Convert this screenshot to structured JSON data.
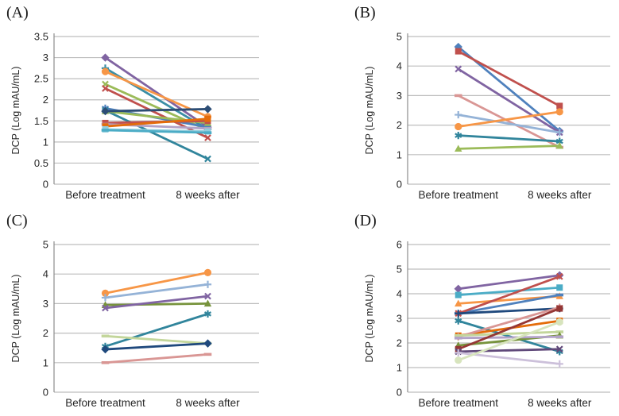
{
  "style": {
    "background": "#ffffff",
    "grid_color": "#bdbdbd",
    "axis_color": "#8c8c8c",
    "text_color": "#262626"
  },
  "chart_data": [
    {
      "type": "line",
      "panel_label": "(A)",
      "ylabel": "DCP (Log mAU/mL)",
      "categories": [
        "Before treatment",
        "8 weeks after"
      ],
      "ylim": [
        0,
        3.5
      ],
      "yticks": [
        0,
        0.5,
        1,
        1.5,
        2,
        2.5,
        3,
        3.5
      ],
      "ytick_labels": [
        "0",
        "0.5",
        "1",
        "1.5",
        "2",
        "2.5",
        "3",
        "3.5"
      ],
      "grid": true,
      "legend": "none",
      "series": [
        {
          "color": "#8064A2",
          "marker": "diamond",
          "values": [
            3.0,
            1.35
          ]
        },
        {
          "color": "#3B8EA5",
          "marker": "plus",
          "values": [
            2.75,
            1.3
          ]
        },
        {
          "color": "#F79646",
          "marker": "circle",
          "values": [
            2.67,
            1.6
          ]
        },
        {
          "color": "#9BBB59",
          "marker": "x",
          "values": [
            2.37,
            1.28
          ]
        },
        {
          "color": "#C0504D",
          "marker": "x",
          "values": [
            2.27,
            1.1
          ]
        },
        {
          "color": "#4F81BD",
          "marker": "asterisk",
          "values": [
            1.8,
            1.35
          ]
        },
        {
          "color": "#31859C",
          "marker": "x",
          "values": [
            1.75,
            0.6
          ]
        },
        {
          "color": "#9BBB59",
          "marker": "triangle",
          "values": [
            1.73,
            1.45
          ]
        },
        {
          "color": "#2C4D75",
          "marker": "diamond",
          "values": [
            1.73,
            1.78
          ]
        },
        {
          "color": "#C0504D",
          "marker": "square",
          "values": [
            1.45,
            1.5
          ]
        },
        {
          "color": "#B2A2C7",
          "marker": "dash",
          "values": [
            1.42,
            1.32
          ]
        },
        {
          "color": "#E46C0A",
          "marker": "square",
          "values": [
            1.37,
            1.55
          ]
        },
        {
          "color": "#92CDDC",
          "marker": "square",
          "values": [
            1.3,
            1.25
          ]
        },
        {
          "color": "#4BACC6",
          "marker": "dash",
          "values": [
            1.28,
            1.22
          ]
        }
      ]
    },
    {
      "type": "line",
      "panel_label": "(B)",
      "ylabel": "DCP (Log mAU/mL)",
      "categories": [
        "Before treatment",
        "8 weeks after"
      ],
      "ylim": [
        0,
        5
      ],
      "yticks": [
        0,
        1,
        2,
        3,
        4,
        5
      ],
      "ytick_labels": [
        "0",
        "1",
        "2",
        "3",
        "4",
        "5"
      ],
      "grid": true,
      "legend": "none",
      "series": [
        {
          "color": "#4F81BD",
          "marker": "diamond",
          "values": [
            4.65,
            1.8
          ]
        },
        {
          "color": "#C0504D",
          "marker": "square",
          "values": [
            4.5,
            2.65
          ]
        },
        {
          "color": "#8064A2",
          "marker": "x",
          "values": [
            3.9,
            1.75
          ]
        },
        {
          "color": "#D99694",
          "marker": "dash",
          "values": [
            3.0,
            1.25
          ]
        },
        {
          "color": "#95B3D7",
          "marker": "plus",
          "values": [
            2.35,
            1.75
          ]
        },
        {
          "color": "#F79646",
          "marker": "circle",
          "values": [
            1.95,
            2.45
          ]
        },
        {
          "color": "#31859C",
          "marker": "asterisk",
          "values": [
            1.65,
            1.45
          ]
        },
        {
          "color": "#9BBB59",
          "marker": "triangle",
          "values": [
            1.2,
            1.3
          ]
        }
      ]
    },
    {
      "type": "line",
      "panel_label": "(C)",
      "ylabel": "DCP (Log mAU/mL)",
      "categories": [
        "Before treatment",
        "8 weeks after"
      ],
      "ylim": [
        0,
        5
      ],
      "yticks": [
        0,
        1,
        2,
        3,
        4,
        5
      ],
      "ytick_labels": [
        "0",
        "1",
        "2",
        "3",
        "4",
        "5"
      ],
      "grid": true,
      "legend": "none",
      "series": [
        {
          "color": "#F79646",
          "marker": "circle",
          "values": [
            3.35,
            4.05
          ]
        },
        {
          "color": "#95B3D7",
          "marker": "plus",
          "values": [
            3.2,
            3.65
          ]
        },
        {
          "color": "#77933C",
          "marker": "triangle",
          "values": [
            2.95,
            3.0
          ]
        },
        {
          "color": "#8064A2",
          "marker": "x",
          "values": [
            2.85,
            3.25
          ]
        },
        {
          "color": "#31859C",
          "marker": "asterisk",
          "values": [
            1.55,
            2.65
          ]
        },
        {
          "color": "#C3D69B",
          "marker": "dash",
          "values": [
            1.9,
            1.65
          ]
        },
        {
          "color": "#1F497D",
          "marker": "diamond",
          "values": [
            1.45,
            1.65
          ]
        },
        {
          "color": "#D99694",
          "marker": "dash",
          "values": [
            1.0,
            1.28
          ]
        }
      ]
    },
    {
      "type": "line",
      "panel_label": "(D)",
      "ylabel": "DCP (Log mAU/mL)",
      "categories": [
        "Before treatment",
        "8 weeks after"
      ],
      "ylim": [
        0,
        6
      ],
      "yticks": [
        0,
        1,
        2,
        3,
        4,
        5,
        6
      ],
      "ytick_labels": [
        "0",
        "1",
        "2",
        "3",
        "4",
        "5",
        "6"
      ],
      "grid": true,
      "legend": "none",
      "series": [
        {
          "color": "#8064A2",
          "marker": "diamond",
          "values": [
            4.2,
            4.75
          ]
        },
        {
          "color": "#4BACC6",
          "marker": "square",
          "values": [
            3.95,
            4.25
          ]
        },
        {
          "color": "#F79646",
          "marker": "triangle",
          "values": [
            3.6,
            3.9
          ]
        },
        {
          "color": "#4F81BD",
          "marker": "dash",
          "values": [
            3.2,
            3.95
          ]
        },
        {
          "color": "#C0504D",
          "marker": "x",
          "values": [
            3.2,
            4.7
          ]
        },
        {
          "color": "#1F497D",
          "marker": "plus",
          "values": [
            3.2,
            3.4
          ]
        },
        {
          "color": "#31859C",
          "marker": "asterisk",
          "values": [
            2.9,
            1.65
          ]
        },
        {
          "color": "#E46C0A",
          "marker": "square",
          "values": [
            2.3,
            2.9
          ]
        },
        {
          "color": "#D99694",
          "marker": "asterisk",
          "values": [
            2.25,
            3.45
          ]
        },
        {
          "color": "#C3D69B",
          "marker": "dash",
          "values": [
            2.3,
            2.45
          ]
        },
        {
          "color": "#77933C",
          "marker": "triangle",
          "values": [
            1.9,
            2.3
          ]
        },
        {
          "color": "#B2A2C7",
          "marker": "dash",
          "values": [
            2.2,
            2.25
          ]
        },
        {
          "color": "#953735",
          "marker": "square",
          "values": [
            1.75,
            3.4
          ]
        },
        {
          "color": "#60497A",
          "marker": "x",
          "values": [
            1.65,
            1.75
          ]
        },
        {
          "color": "#CCC0DA",
          "marker": "plus",
          "values": [
            1.6,
            1.15
          ]
        },
        {
          "color": "#D7E4BD",
          "marker": "circle",
          "values": [
            1.3,
            2.85
          ]
        }
      ]
    }
  ]
}
